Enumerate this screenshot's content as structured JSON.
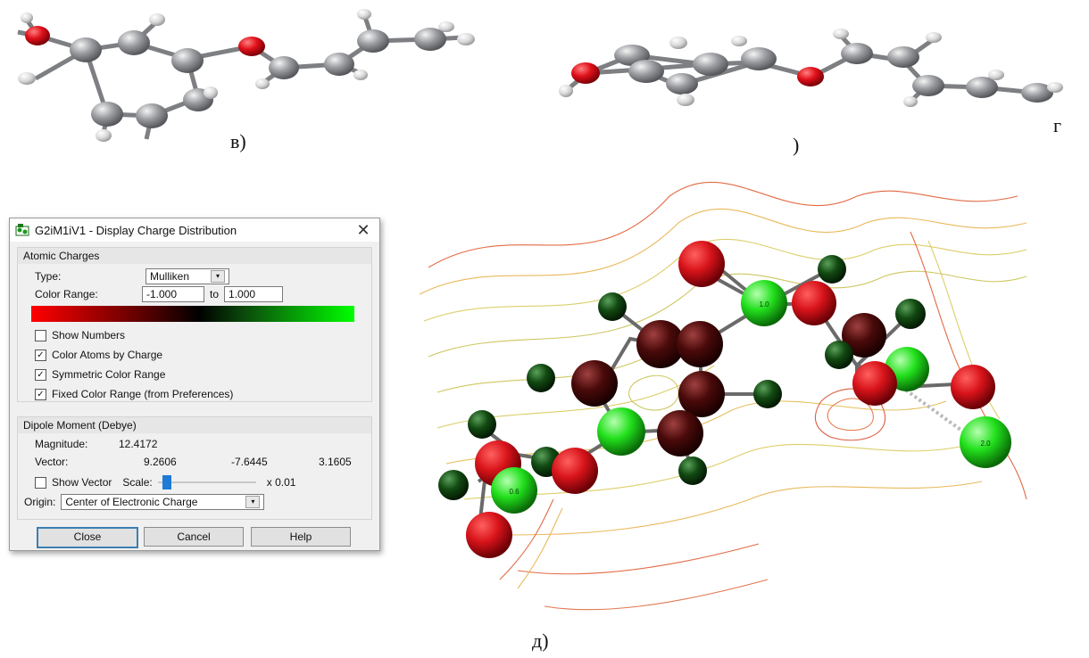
{
  "captions": {
    "v": "в)",
    "g": "г",
    "g_paren": ")",
    "d": "д)"
  },
  "dialog": {
    "title": "G2iM1iV1 - Display Charge Distribution",
    "close_glyph": "✕",
    "atomic_charges": {
      "heading": "Atomic Charges",
      "type_label": "Type:",
      "type_value": "Mulliken",
      "range_label": "Color Range:",
      "range_min": "-1.000",
      "range_to": "to",
      "range_max": "1.000",
      "gradient_colors": [
        "#ff0000",
        "#5a0000",
        "#000000",
        "#0b4a0b",
        "#00ff00"
      ],
      "checkboxes": [
        {
          "label": "Show Numbers",
          "checked": false
        },
        {
          "label": "Color Atoms by Charge",
          "checked": true
        },
        {
          "label": "Symmetric Color Range",
          "checked": true
        },
        {
          "label": "Fixed Color Range (from Preferences)",
          "checked": true
        }
      ]
    },
    "dipole": {
      "heading": "Dipole Moment (Debye)",
      "magnitude_label": "Magnitude:",
      "magnitude": "12.4172",
      "vector_label": "Vector:",
      "vx": "9.2606",
      "vy": "-7.6445",
      "vz": "3.1605",
      "show_vector_label": "Show Vector",
      "scale_label": "Scale:",
      "scale_suffix": "x 0.01",
      "scale_level": 0.05,
      "origin_label": "Origin:",
      "origin_value": "Center of Electronic Charge"
    },
    "buttons": {
      "close": "Close",
      "cancel": "Cancel",
      "help": "Help"
    }
  },
  "atom_labels": {
    "a1": "1.0",
    "a2": "0.6",
    "a3": "2.0"
  },
  "colors": {
    "oxygen_red": "#d8141a",
    "carbon_gray": "#8f9196",
    "hydrogen_white": "#e6e6e6",
    "positive_green": "#22e01c",
    "negative_dark": "#4a0a0a"
  }
}
